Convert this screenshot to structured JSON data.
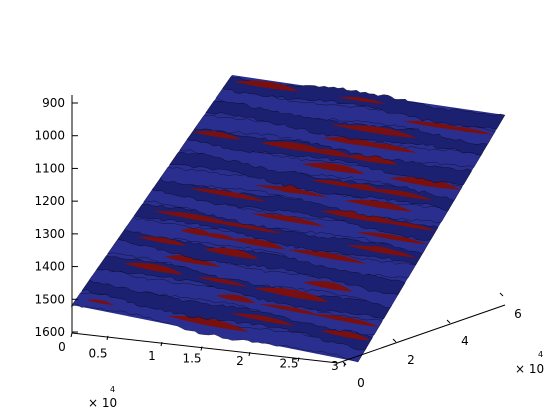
{
  "chart_data": {
    "type": "surface",
    "title": "",
    "xlabel": "",
    "ylabel": "",
    "zlabel": "",
    "x_ticks": [
      "0",
      "0.5",
      "1",
      "1.5",
      "2",
      "2.5",
      "3"
    ],
    "x_exponent": {
      "base": "× 10",
      "power": "4"
    },
    "y_ticks": [
      "0",
      "2",
      "4",
      "6"
    ],
    "y_exponent": {
      "base": "× 10",
      "power": "4"
    },
    "z_ticks": [
      "900",
      "1000",
      "1100",
      "1200",
      "1300",
      "1400",
      "1500",
      "1600"
    ],
    "zlim": [
      900,
      1600
    ],
    "z_direction": "reversed",
    "x_range": [
      0,
      30000
    ],
    "y_range": [
      0,
      65000
    ],
    "grid": false,
    "legend": "none",
    "stripes": 18,
    "colors": {
      "surface": "#2a2f8f",
      "surface_dark": "#1c2070",
      "highlight": "#7a0f10",
      "edge": "#000000",
      "axis": "#000000"
    }
  }
}
